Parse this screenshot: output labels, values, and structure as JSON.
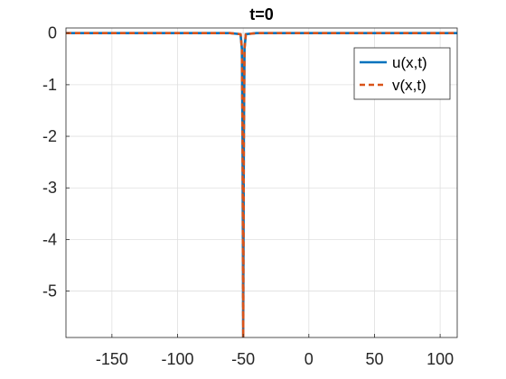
{
  "chart_data": {
    "type": "line",
    "title": "t=0",
    "xlabel": "",
    "ylabel": "",
    "xlim": [
      -185,
      113
    ],
    "ylim": [
      -5.9,
      0.1
    ],
    "xticks": [
      -150,
      -100,
      -50,
      0,
      50,
      100
    ],
    "yticks": [
      0,
      -1,
      -2,
      -3,
      -4,
      -5
    ],
    "grid": true,
    "legend_position": "top-right",
    "series": [
      {
        "name": "u(x,t)",
        "color": "#0072BD",
        "line_style": "solid",
        "x": [
          -185,
          -60,
          -52,
          -51,
          -50.5,
          -50,
          -49.5,
          -49,
          -48,
          -40,
          113
        ],
        "y": [
          0,
          0,
          -0.02,
          -0.3,
          -2.0,
          -5.9,
          -2.0,
          -0.3,
          -0.02,
          0,
          0
        ]
      },
      {
        "name": "v(x,t)",
        "color": "#D95319",
        "line_style": "dashed",
        "x": [
          -185,
          -60,
          -52,
          -51,
          -50.5,
          -50,
          -49.5,
          -49,
          -48,
          -40,
          113
        ],
        "y": [
          0,
          0,
          -0.02,
          -0.3,
          -2.0,
          -5.9,
          -2.0,
          -0.3,
          -0.02,
          0,
          0
        ]
      }
    ]
  }
}
